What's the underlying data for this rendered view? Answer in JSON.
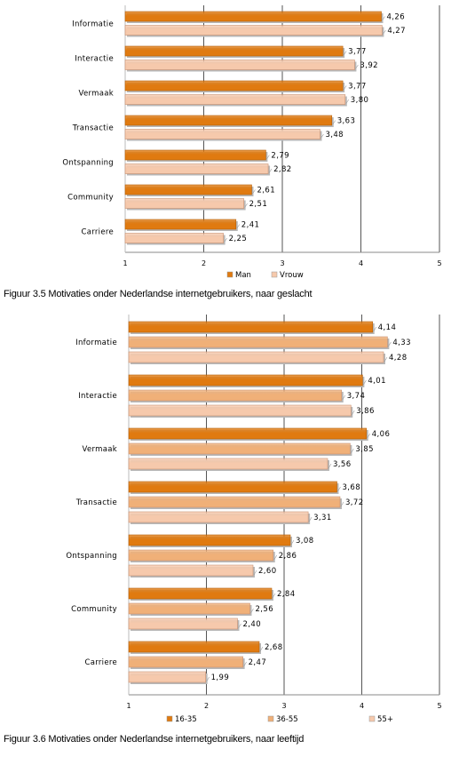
{
  "colors": {
    "orange_dark": "#e07a10",
    "orange_mid": "#f0b078",
    "peach_light": "#f6c9ac",
    "gridline": "#555555",
    "axis": "#888888"
  },
  "charts": [
    {
      "caption": "Figuur 3.5 Motivaties onder Nederlandse internetgebruikers, naar geslacht",
      "chart_data": {
        "type": "bar",
        "orientation": "horizontal",
        "categories": [
          "Informatie",
          "Interactie",
          "Vermaak",
          "Transactie",
          "Ontspanning",
          "Community",
          "Carriere"
        ],
        "series": [
          {
            "name": "Man",
            "color": "#e07a10",
            "values": [
              4.26,
              3.77,
              3.77,
              3.63,
              2.79,
              2.61,
              2.41
            ]
          },
          {
            "name": "Vrouw",
            "color": "#f6c9ac",
            "values": [
              4.27,
              3.92,
              3.8,
              3.48,
              2.82,
              2.51,
              2.25
            ]
          }
        ],
        "value_labels": [
          [
            "4,26",
            "3,77",
            "3,77",
            "3,63",
            "2,79",
            "2,61",
            "2,41"
          ],
          [
            "4,27",
            "3,92",
            "3,80",
            "3,48",
            "2,82",
            "2,51",
            "2,25"
          ]
        ],
        "xlim": [
          1,
          5
        ],
        "xticks": [
          "1",
          "2",
          "3",
          "4",
          "5"
        ],
        "grid": "vertical",
        "legend": "bottom"
      }
    },
    {
      "caption": "Figuur 3.6 Motivaties onder Nederlandse internetgebruikers, naar leeftijd",
      "chart_data": {
        "type": "bar",
        "orientation": "horizontal",
        "categories": [
          "Informatie",
          "Interactie",
          "Vermaak",
          "Transactie",
          "Ontspanning",
          "Community",
          "Carriere"
        ],
        "series": [
          {
            "name": "16-35",
            "color": "#e07a10",
            "values": [
              4.14,
              4.01,
              4.06,
              3.68,
              3.08,
              2.84,
              2.68
            ]
          },
          {
            "name": "36-55",
            "color": "#f0b078",
            "values": [
              4.33,
              3.74,
              3.85,
              3.72,
              2.86,
              2.56,
              2.47
            ]
          },
          {
            "name": "55+",
            "color": "#f6c9ac",
            "values": [
              4.28,
              3.86,
              3.56,
              3.31,
              2.6,
              2.4,
              1.99
            ]
          }
        ],
        "value_labels": [
          [
            "4,14",
            "4,01",
            "4,06",
            "3,68",
            "3,08",
            "2,84",
            "2,68"
          ],
          [
            "4,33",
            "3,74",
            "3,85",
            "3,72",
            "2,86",
            "2,56",
            "2,47"
          ],
          [
            "4,28",
            "3,86",
            "3,56",
            "3,31",
            "2,60",
            "2,40",
            "1,99"
          ]
        ],
        "xlim": [
          1,
          5
        ],
        "xticks": [
          "1",
          "2",
          "3",
          "4",
          "5"
        ],
        "grid": "vertical",
        "legend": "bottom"
      }
    }
  ]
}
